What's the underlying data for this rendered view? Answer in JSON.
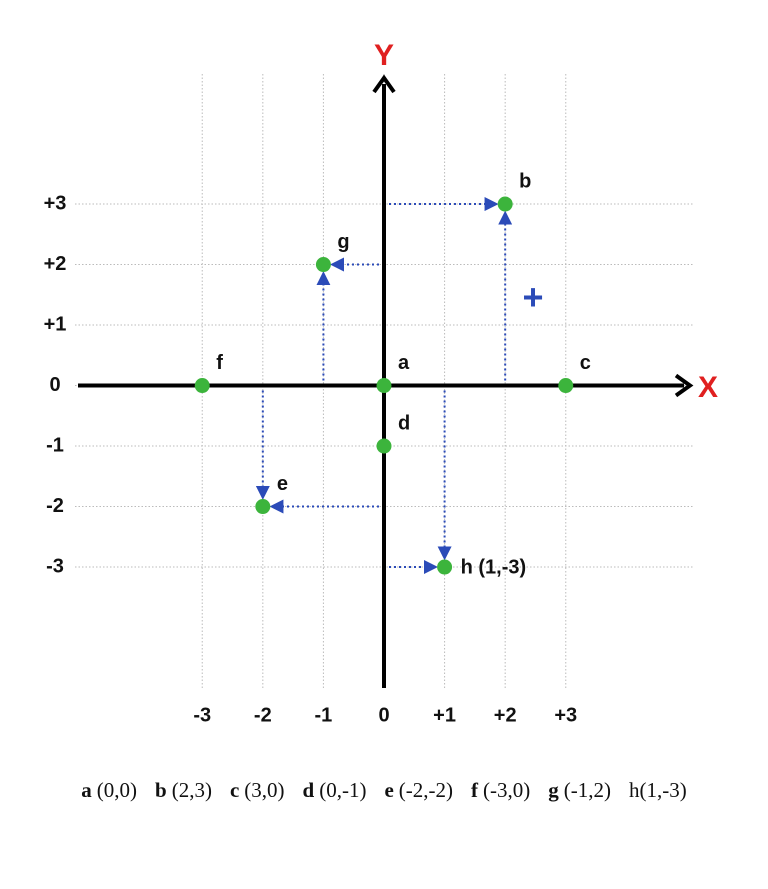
{
  "chart_data": {
    "type": "scatter",
    "x_label": "X",
    "y_label": "Y",
    "x": [
      0,
      2,
      3,
      0,
      -2,
      -3,
      -1,
      1
    ],
    "values": [
      0,
      3,
      0,
      -1,
      -2,
      0,
      2,
      -3
    ],
    "point_labels": [
      "a",
      "b",
      "c",
      "d",
      "e",
      "f",
      "g",
      "h (1,-3)"
    ],
    "color": "#3cb43c",
    "arrow_color": "#2b4bb8",
    "xlim": [
      -5.1,
      5.1
    ],
    "ylim": [
      -5,
      5.15
    ],
    "xticks": [
      -3,
      -2,
      -1,
      0,
      {
        "value": 1,
        "label": "+1"
      },
      {
        "value": 2,
        "label": "+2"
      },
      {
        "value": 3,
        "label": "+3"
      }
    ],
    "yticks": [
      -3,
      -2,
      -1,
      0,
      {
        "value": 1,
        "label": "+1"
      },
      {
        "value": 2,
        "label": "+2"
      },
      {
        "value": 3,
        "label": "+3"
      }
    ],
    "grid": true,
    "quadrant_sign": "+",
    "caption": [
      {
        "letter": "a",
        "coords": "(0,0)",
        "bold": true
      },
      {
        "letter": "b",
        "coords": "(2,3)",
        "bold": true
      },
      {
        "letter": "c",
        "coords": "(3,0)",
        "bold": true
      },
      {
        "letter": "d",
        "coords": "(0,-1)",
        "bold": true
      },
      {
        "letter": "e",
        "coords": "(-2,-2)",
        "bold": true
      },
      {
        "letter": "f",
        "coords": "(-3,0)",
        "bold": true
      },
      {
        "letter": "g",
        "coords": "(-1,2)",
        "bold": true
      },
      {
        "letter": "h",
        "coords": "(1,-3)",
        "bold": false
      }
    ]
  }
}
